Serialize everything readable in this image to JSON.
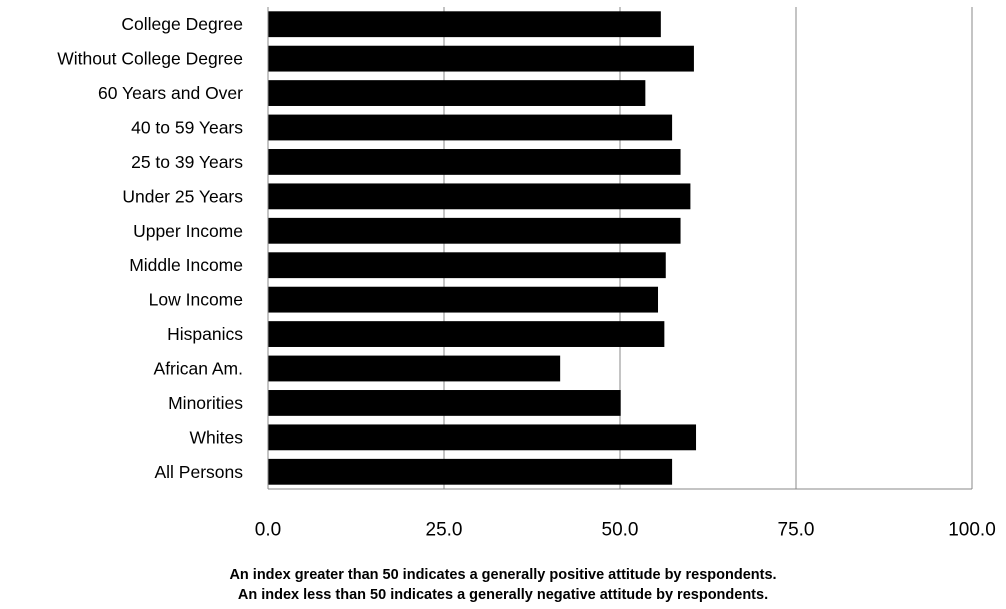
{
  "chart_data": {
    "type": "bar",
    "orientation": "horizontal",
    "categories": [
      "College Degree",
      "Without College Degree",
      "60 Years and Over",
      "40 to 59 Years",
      "25 to 39 Years",
      "Under 25 Years",
      "Upper Income",
      "Middle Income",
      "Low Income",
      "Hispanics",
      "African Am.",
      "Minorities",
      "Whites",
      "All Persons"
    ],
    "values": [
      55.8,
      60.5,
      53.6,
      57.4,
      58.6,
      60.0,
      58.6,
      56.5,
      55.4,
      56.3,
      41.5,
      50.1,
      60.8,
      57.4
    ],
    "xlim": [
      0,
      100
    ],
    "x_ticks": [
      "0.0",
      "25.0",
      "50.0",
      "75.0",
      "100.0"
    ],
    "x_tick_values": [
      0,
      25,
      50,
      75,
      100
    ],
    "grid": "vertical",
    "bar_color": "#000000",
    "grid_color": "#888888",
    "legend": "none",
    "title": "",
    "xlabel": "",
    "ylabel": ""
  },
  "notes": {
    "line1": "An index greater than 50 indicates a generally positive attitude by respondents.",
    "line2": "An index less than 50 indicates a generally negative attitude by respondents."
  }
}
